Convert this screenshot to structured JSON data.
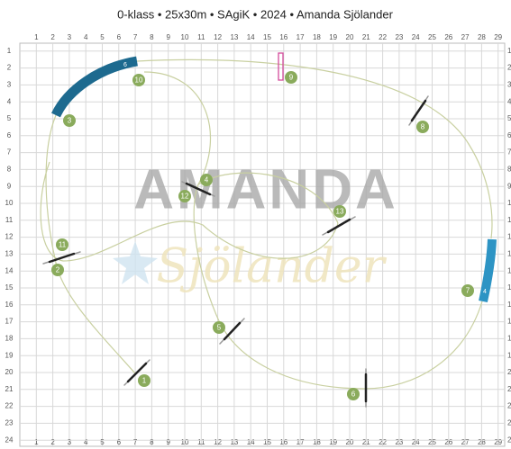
{
  "header": {
    "title": "0-klass • 25x30m • SAgiK • 2024 • Amanda Sjölander"
  },
  "grid": {
    "columns": [
      1,
      2,
      3,
      4,
      5,
      6,
      7,
      8,
      9,
      10,
      11,
      12,
      13,
      14,
      15,
      16,
      17,
      18,
      19,
      20,
      21,
      22,
      23,
      24,
      25,
      26,
      27,
      28,
      29
    ],
    "rows": [
      1,
      2,
      3,
      4,
      5,
      6,
      7,
      8,
      9,
      10,
      11,
      12,
      13,
      14,
      15,
      16,
      17,
      18,
      19,
      20,
      21,
      22,
      23,
      24
    ]
  },
  "watermark": {
    "name": "AMANDA",
    "script": "Sjölander"
  },
  "tunnels": [
    {
      "label": "6"
    },
    {
      "label": "4"
    }
  ],
  "markers": [
    {
      "label": "1"
    },
    {
      "label": "2"
    },
    {
      "label": "3"
    },
    {
      "label": "4"
    },
    {
      "label": "5"
    },
    {
      "label": "6"
    },
    {
      "label": "7"
    },
    {
      "label": "8"
    },
    {
      "label": "9"
    },
    {
      "label": "10"
    },
    {
      "label": "11"
    },
    {
      "label": "12"
    },
    {
      "label": "13"
    }
  ]
}
